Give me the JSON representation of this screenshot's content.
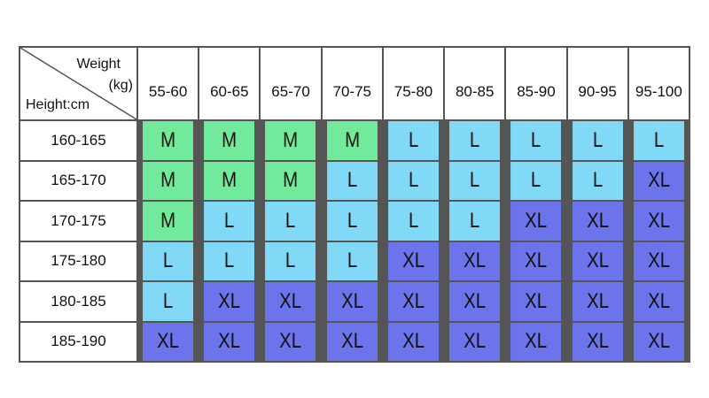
{
  "table": {
    "corner": {
      "weight": "Weight",
      "unit": "(kg)",
      "height": "Height:cm"
    },
    "columns": [
      "55-60",
      "60-65",
      "65-70",
      "70-75",
      "75-80",
      "80-85",
      "85-90",
      "90-95",
      "95-100"
    ],
    "rows": [
      {
        "label": "160-165",
        "cells": [
          "M",
          "M",
          "M",
          "M",
          "L",
          "L",
          "L",
          "L",
          "L"
        ]
      },
      {
        "label": "165-170",
        "cells": [
          "M",
          "M",
          "M",
          "L",
          "L",
          "L",
          "L",
          "L",
          "XL"
        ]
      },
      {
        "label": "170-175",
        "cells": [
          "M",
          "L",
          "L",
          "L",
          "L",
          "L",
          "XL",
          "XL",
          "XL"
        ]
      },
      {
        "label": "175-180",
        "cells": [
          "L",
          "L",
          "L",
          "L",
          "XL",
          "XL",
          "XL",
          "XL",
          "XL"
        ]
      },
      {
        "label": "180-185",
        "cells": [
          "L",
          "XL",
          "XL",
          "XL",
          "XL",
          "XL",
          "XL",
          "XL",
          "XL"
        ]
      },
      {
        "label": "185-190",
        "cells": [
          "XL",
          "XL",
          "XL",
          "XL",
          "XL",
          "XL",
          "XL",
          "XL",
          "XL"
        ]
      }
    ],
    "size_colors": {
      "M": "#72ea9c",
      "L": "#80d9f6",
      "XL": "#6b74ea"
    }
  }
}
